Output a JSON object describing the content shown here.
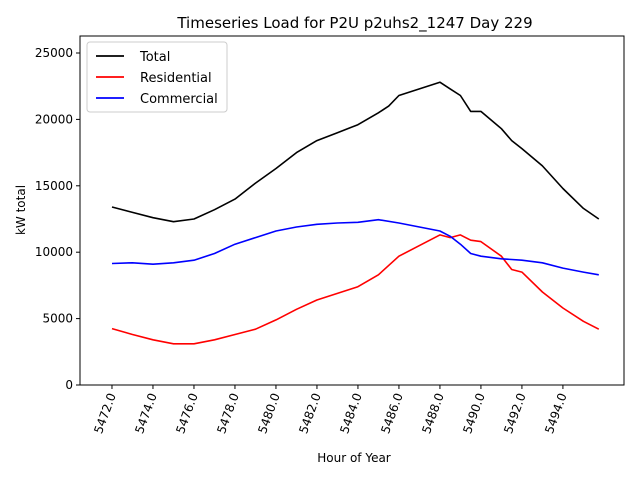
{
  "chart_data": {
    "type": "line",
    "title": "Timeseries Load for P2U p2uhs2_1247  Day 229",
    "xlabel": "Hour of Year",
    "ylabel": "kW total",
    "xlim": [
      5470.44,
      5496.98
    ],
    "ylim": [
      0,
      26280
    ],
    "grid": false,
    "legend_placement": "top-left",
    "x_ticks": [
      5472,
      5474,
      5476,
      5478,
      5480,
      5482,
      5484,
      5486,
      5488,
      5490,
      5492,
      5494
    ],
    "x_tick_labels": [
      "5472.0",
      "5474.0",
      "5476.0",
      "5478.0",
      "5480.0",
      "5482.0",
      "5484.0",
      "5486.0",
      "5488.0",
      "5490.0",
      "5492.0",
      "5494.0"
    ],
    "y_ticks": [
      0,
      5000,
      10000,
      15000,
      20000,
      25000
    ],
    "y_tick_labels": [
      "0",
      "5000",
      "10000",
      "15000",
      "20000",
      "25000"
    ],
    "series": [
      {
        "name": "Total",
        "color": "#000000",
        "x": [
          5472,
          5473,
          5474,
          5475,
          5476,
          5477,
          5478,
          5478.5,
          5479,
          5480,
          5481,
          5482,
          5483,
          5484,
          5485,
          5485.5,
          5486,
          5487,
          5488,
          5488.5,
          5489,
          5489.5,
          5490,
          5491,
          5491.5,
          5492,
          5493,
          5494,
          5495,
          5495.75
        ],
        "y": [
          13400,
          13000,
          12600,
          12300,
          12500,
          13200,
          14000,
          14600,
          15200,
          16300,
          17500,
          18400,
          19000,
          19600,
          20500,
          21000,
          21800,
          22300,
          22800,
          22300,
          21800,
          20600,
          20600,
          19300,
          18400,
          17800,
          16500,
          14800,
          13300,
          12500
        ]
      },
      {
        "name": "Residential",
        "color": "#ff0000",
        "x": [
          5472,
          5473,
          5474,
          5475,
          5476,
          5477,
          5478,
          5479,
          5480,
          5481,
          5482,
          5483,
          5484,
          5485,
          5486,
          5487,
          5488,
          5488.5,
          5489,
          5489.5,
          5490,
          5491,
          5491.5,
          5492,
          5493,
          5494,
          5495,
          5495.75
        ],
        "y": [
          4250,
          3800,
          3400,
          3100,
          3100,
          3400,
          3800,
          4200,
          4900,
          5700,
          6400,
          6900,
          7400,
          8300,
          9700,
          10500,
          11300,
          11100,
          11300,
          10900,
          10800,
          9700,
          8700,
          8500,
          7000,
          5800,
          4800,
          4200
        ]
      },
      {
        "name": "Commercial",
        "color": "#0000ff",
        "x": [
          5472,
          5473,
          5474,
          5475,
          5476,
          5477,
          5478,
          5479,
          5480,
          5481,
          5482,
          5483,
          5484,
          5485,
          5486,
          5487,
          5488,
          5488.5,
          5489,
          5489.5,
          5490,
          5491,
          5492,
          5493,
          5494,
          5495,
          5495.75
        ],
        "y": [
          9150,
          9200,
          9100,
          9200,
          9400,
          9900,
          10600,
          11100,
          11600,
          11900,
          12100,
          12200,
          12250,
          12450,
          12200,
          11900,
          11600,
          11200,
          10600,
          9900,
          9700,
          9500,
          9400,
          9200,
          8800,
          8500,
          8300
        ]
      }
    ]
  }
}
